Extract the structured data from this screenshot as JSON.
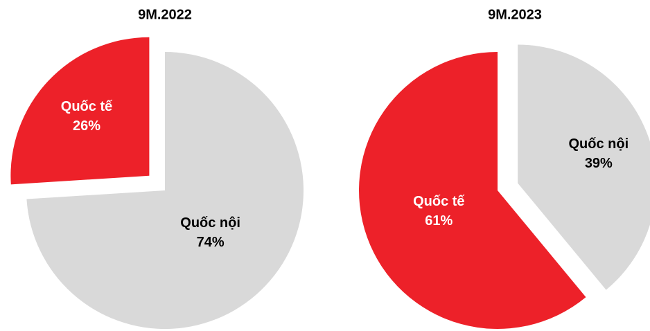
{
  "chart_data": [
    {
      "type": "pie",
      "title": "9M.2022",
      "categories": [
        "Quốc nội",
        "Quốc tế"
      ],
      "values": [
        74,
        26
      ],
      "value_labels": [
        "74%",
        "26%"
      ],
      "colors": [
        "#d9d9d9",
        "#ed2129"
      ]
    },
    {
      "type": "pie",
      "title": "9M.2023",
      "categories": [
        "Quốc nội",
        "Quốc tế"
      ],
      "values": [
        39,
        61
      ],
      "value_labels": [
        "39%",
        "61%"
      ],
      "colors": [
        "#d9d9d9",
        "#ed2129"
      ]
    }
  ]
}
